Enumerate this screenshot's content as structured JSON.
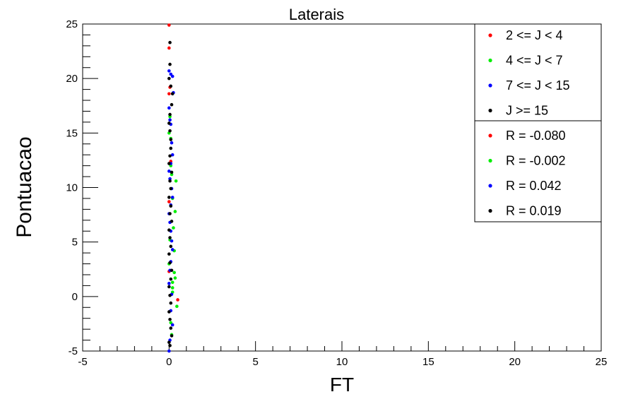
{
  "chart_data": {
    "type": "scatter",
    "title": "Laterais",
    "xlabel": "FT",
    "ylabel": "Pontuacao",
    "xlim": [
      -5,
      25
    ],
    "ylim": [
      -5,
      25
    ],
    "x_ticks": [
      -5,
      0,
      5,
      10,
      15,
      20,
      25
    ],
    "y_ticks": [
      -5,
      0,
      5,
      10,
      15,
      20,
      25
    ],
    "grid": false,
    "legend_position": "top-right",
    "series": [
      {
        "name": "2 <= J < 4",
        "color": "#ff0000",
        "x": [
          0.0,
          0.0,
          0.05,
          0.0,
          0.1,
          0.5,
          0.0,
          0.0
        ],
        "y": [
          24.9,
          22.8,
          19.2,
          18.6,
          12.4,
          -0.3,
          2.3,
          8.7
        ]
      },
      {
        "name": "4 <= J < 7",
        "color": "#00ee00",
        "x": [
          0.0,
          0.05,
          0.1,
          0.15,
          0.4,
          0.35,
          0.3,
          0.3,
          0.2,
          0.2,
          0.45,
          0.1,
          0.2,
          0.25,
          0.05,
          0.0,
          0.1,
          0.15,
          0.35,
          0.2
        ],
        "y": [
          15.0,
          16.5,
          12.0,
          11.2,
          10.6,
          7.8,
          4.2,
          2.2,
          1.3,
          0.8,
          -0.9,
          14.5,
          9.0,
          6.3,
          5.2,
          3.0,
          -2.4,
          -3.5,
          1.7,
          0.4
        ]
      },
      {
        "name": "7 <= J < 15",
        "color": "#0000ff",
        "x": [
          0.0,
          0.1,
          0.2,
          0.25,
          0.0,
          0.05,
          0.1,
          0.15,
          0.2,
          0.1,
          0.0,
          0.05,
          0.15,
          0.2,
          0.1,
          0.0,
          0.05,
          0.1,
          0.15,
          0.2,
          0.1,
          0.05,
          0.0,
          0.15,
          0.1,
          0.2,
          0.05,
          0.0
        ],
        "y": [
          20.7,
          20.4,
          20.2,
          18.7,
          17.3,
          16.2,
          15.8,
          14.1,
          13.0,
          12.2,
          11.5,
          10.8,
          9.9,
          9.1,
          8.4,
          7.6,
          6.8,
          6.0,
          5.1,
          4.3,
          3.2,
          2.4,
          1.2,
          0.2,
          -1.3,
          -2.6,
          -4.0,
          -5.0
        ]
      },
      {
        "name": "J >= 15",
        "color": "#000000",
        "x": [
          0.05,
          0.05,
          0.0,
          0.1,
          0.2,
          0.15,
          0.05,
          0.0,
          0.05,
          0.1,
          0.1,
          0.05,
          0.0,
          0.15,
          0.05,
          0.1,
          0.0,
          0.1,
          0.05,
          0.15,
          0.0,
          0.05,
          0.1,
          0.0,
          0.05,
          0.15,
          0.1,
          0.0,
          0.05,
          0.1,
          0.0,
          0.05,
          0.1,
          0.15,
          0.0,
          0.05
        ],
        "y": [
          23.3,
          21.3,
          20.0,
          19.3,
          18.6,
          17.6,
          16.7,
          15.9,
          15.2,
          14.4,
          13.6,
          12.9,
          12.2,
          11.4,
          10.6,
          9.9,
          9.1,
          8.3,
          7.6,
          6.9,
          6.1,
          5.4,
          4.6,
          3.9,
          3.1,
          2.4,
          1.6,
          0.9,
          0.1,
          -0.6,
          -1.4,
          -2.1,
          -2.9,
          -3.6,
          -4.2,
          -4.5
        ]
      }
    ],
    "correlations": [
      {
        "label": "R = -0.080",
        "color": "#ff0000"
      },
      {
        "label": "R = -0.002",
        "color": "#00ee00"
      },
      {
        "label": "R = 0.042",
        "color": "#0000ff"
      },
      {
        "label": "R = 0.019",
        "color": "#000000"
      }
    ]
  }
}
